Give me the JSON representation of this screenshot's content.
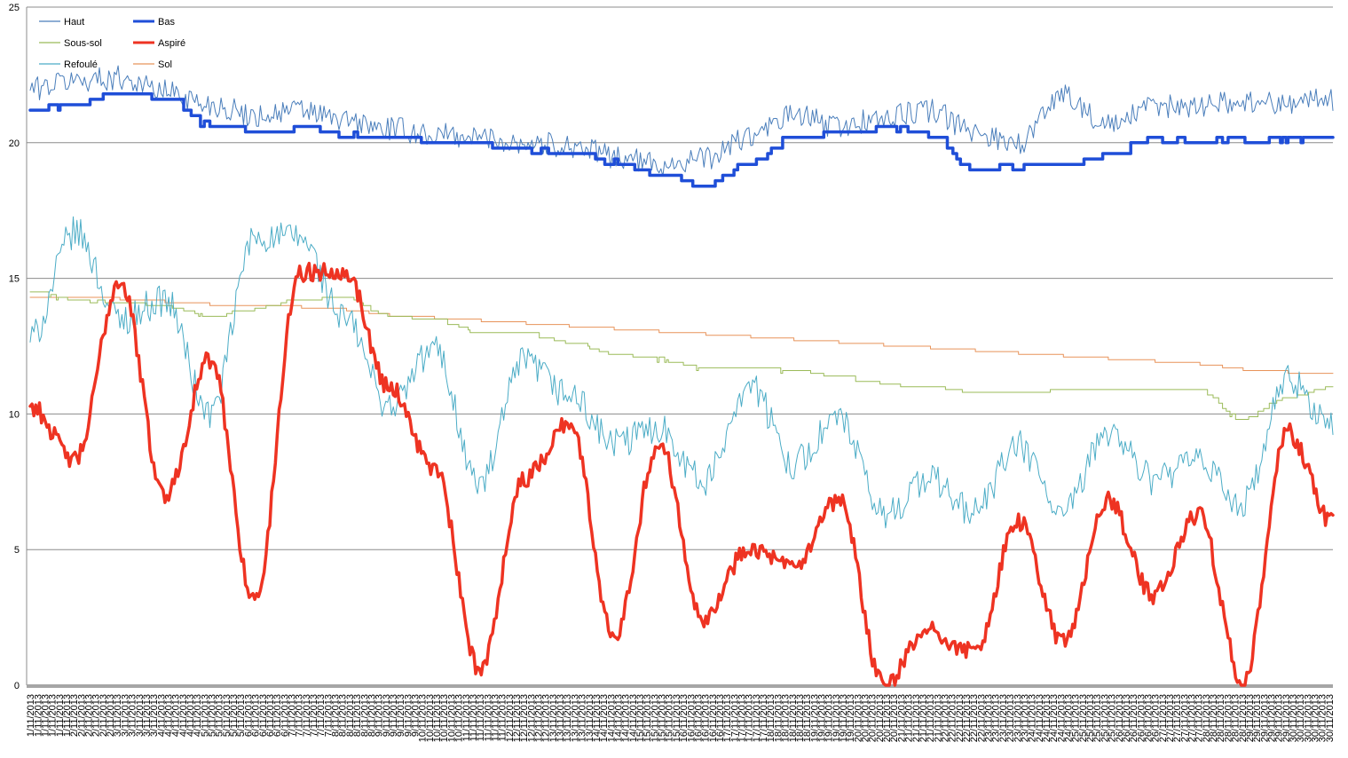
{
  "chart_data": {
    "type": "line",
    "title": "",
    "xlabel": "",
    "ylabel": "",
    "ylim": [
      0,
      25
    ],
    "yticks": [
      0,
      5,
      10,
      15,
      20,
      25
    ],
    "grid": "horizontal",
    "legend": "top-left",
    "x_ticks_per_day": 6,
    "x": [
      "1/11/2013",
      "2/11/2013",
      "3/11/2013",
      "4/11/2013",
      "5/11/2013",
      "6/11/2013",
      "7/11/2013",
      "8/11/2013",
      "9/11/2013",
      "10/11/2013",
      "11/11/2013",
      "12/11/2013",
      "13/11/2013",
      "14/11/2013",
      "15/11/2013",
      "16/11/2013",
      "17/11/2013",
      "18/11/2013",
      "19/11/2013",
      "20/11/2013",
      "21/11/2013",
      "22/11/2013",
      "23/11/2013",
      "24/11/2013",
      "25/11/2013",
      "26/11/2013",
      "27/11/2013",
      "28/11/2013",
      "29/11/2013",
      "30/11/2013"
    ],
    "series": [
      {
        "name": "Haut",
        "color": "#4a7ebb",
        "width": 1,
        "values": [
          22.0,
          22.3,
          22.4,
          21.9,
          21.4,
          21.0,
          21.2,
          20.8,
          20.5,
          20.3,
          20.2,
          20.0,
          19.9,
          19.5,
          19.2,
          19.4,
          20.2,
          21.0,
          20.6,
          20.9,
          21.2,
          20.4,
          20.0,
          21.8,
          20.6,
          21.3,
          21.4,
          21.5,
          21.5,
          21.6
        ]
      },
      {
        "name": "Bas",
        "color": "#1f4ed8",
        "width": 3.5,
        "values": [
          21.2,
          21.4,
          21.9,
          21.6,
          20.7,
          20.4,
          20.5,
          20.3,
          20.2,
          20.0,
          19.9,
          19.7,
          19.6,
          19.3,
          18.8,
          18.4,
          19.3,
          20.2,
          20.4,
          20.6,
          20.3,
          19.0,
          19.1,
          19.2,
          19.6,
          20.1,
          20.1,
          20.1,
          20.1,
          20.2
        ]
      },
      {
        "name": "Sous-sol",
        "color": "#9bbb59",
        "width": 1,
        "values": [
          14.5,
          14.2,
          14.1,
          14.0,
          13.6,
          13.9,
          14.2,
          14.3,
          13.6,
          13.5,
          13.0,
          13.0,
          12.6,
          12.2,
          12.0,
          11.7,
          11.7,
          11.6,
          11.4,
          11.1,
          11.0,
          10.8,
          10.8,
          10.9,
          10.9,
          10.9,
          10.9,
          9.8,
          10.6,
          11.0
        ]
      },
      {
        "name": "Aspiré",
        "color": "#ee3322",
        "width": 3.5,
        "values": [
          10.3,
          8.3,
          14.9,
          7.0,
          12.0,
          3.1,
          15.2,
          15.3,
          11.0,
          8.0,
          0.6,
          7.6,
          9.7,
          1.9,
          8.9,
          2.5,
          5.1,
          4.3,
          6.8,
          0.0,
          2.0,
          1.2,
          6.0,
          1.6,
          6.8,
          3.3,
          6.3,
          0.2,
          9.3,
          6.0
        ]
      },
      {
        "name": "Refoulé",
        "color": "#4bacc6",
        "width": 1,
        "values": [
          12.8,
          16.7,
          13.5,
          14.2,
          10.0,
          16.5,
          16.5,
          13.5,
          10.3,
          12.4,
          7.4,
          11.9,
          10.7,
          8.9,
          9.5,
          7.5,
          11.1,
          8.2,
          9.8,
          6.3,
          7.6,
          6.4,
          8.8,
          6.3,
          9.4,
          7.6,
          8.2,
          6.7,
          11.2,
          9.6
        ]
      },
      {
        "name": "Sol",
        "color": "#e8935a",
        "width": 1,
        "values": [
          14.3,
          14.3,
          14.2,
          14.1,
          14.0,
          14.0,
          13.9,
          13.8,
          13.6,
          13.5,
          13.4,
          13.3,
          13.2,
          13.1,
          13.0,
          12.9,
          12.8,
          12.7,
          12.6,
          12.5,
          12.4,
          12.3,
          12.2,
          12.1,
          12.0,
          11.9,
          11.8,
          11.6,
          11.5,
          11.4
        ]
      }
    ]
  }
}
